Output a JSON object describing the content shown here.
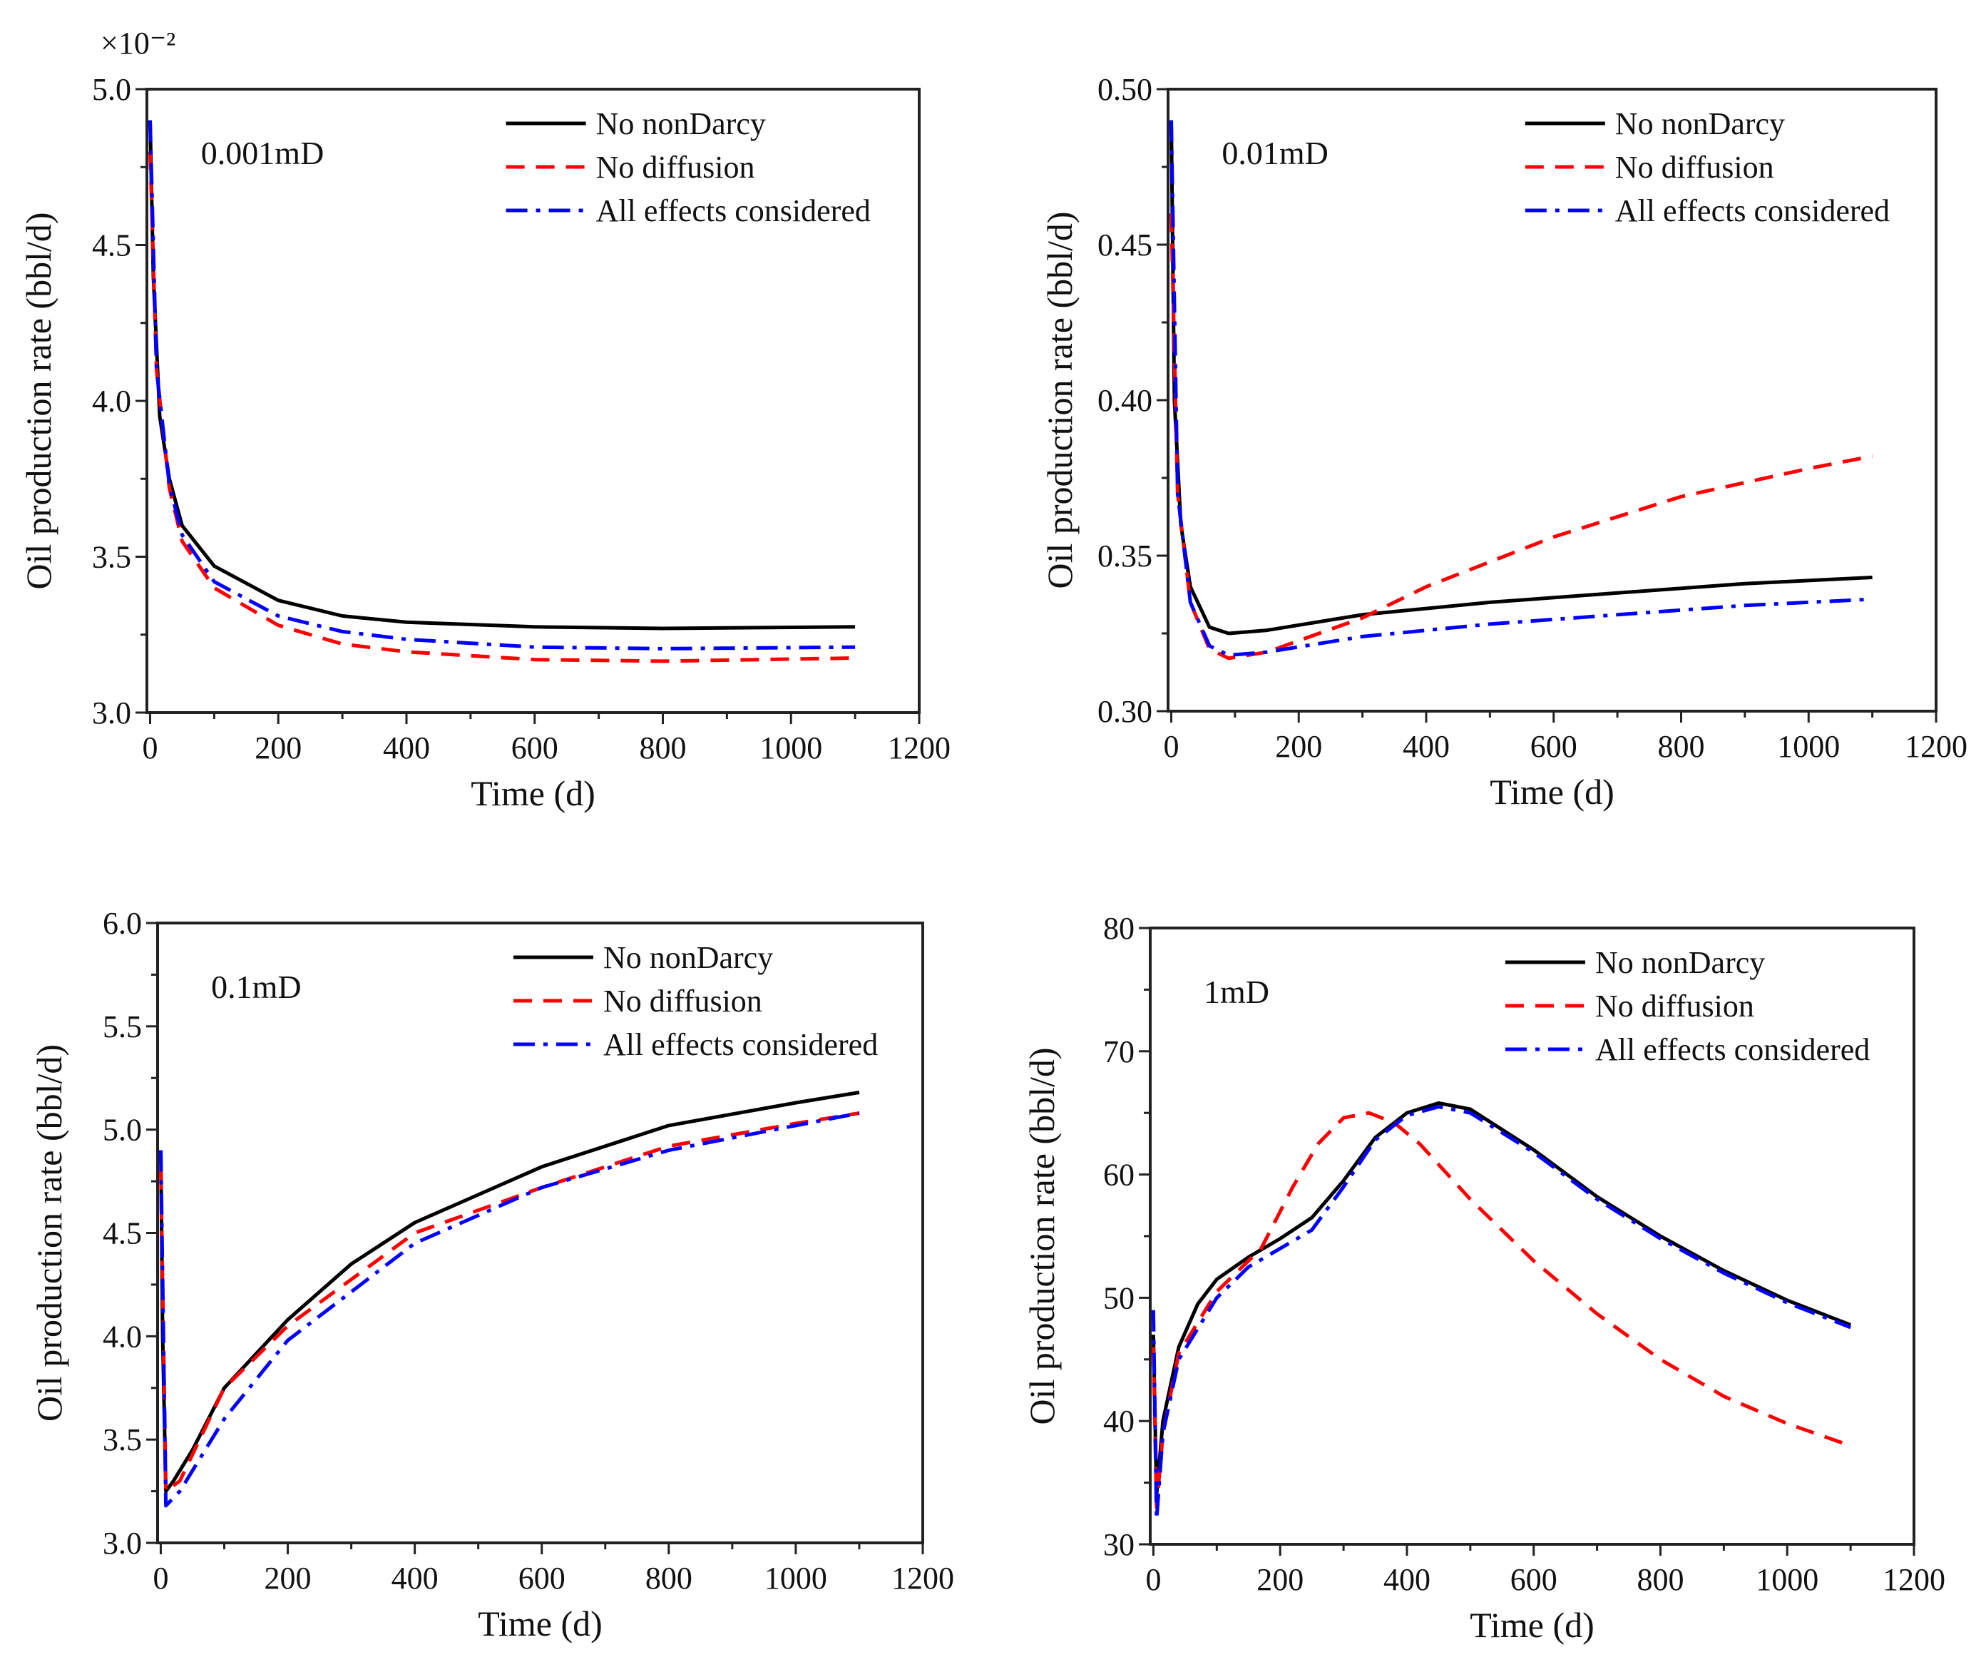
{
  "chart_data": [
    {
      "type": "line",
      "panel_label": "0.001mD",
      "xlabel": "Time (d)",
      "ylabel": "Oil production rate (bbl/d)",
      "y_multiplier": "×10⁻²",
      "xlim": [
        -5,
        1200
      ],
      "ylim": [
        3.0,
        5.0
      ],
      "xticks": [
        0,
        200,
        400,
        600,
        800,
        1000,
        1200
      ],
      "yticks": [
        "3.0",
        "3.5",
        "4.0",
        "4.5",
        "5.0"
      ],
      "legend_placement": "top-right",
      "series": [
        {
          "name": "No nonDarcy",
          "color": "#000000",
          "style": "solid",
          "x": [
            0,
            5,
            15,
            30,
            50,
            100,
            200,
            300,
            400,
            600,
            800,
            1100
          ],
          "y": [
            4.9,
            4.4,
            3.95,
            3.75,
            3.6,
            3.47,
            3.36,
            3.31,
            3.29,
            3.275,
            3.27,
            3.275
          ]
        },
        {
          "name": "No diffusion",
          "color": "#ff0000",
          "style": "dash",
          "x": [
            0,
            10,
            30,
            50,
            100,
            200,
            300,
            400,
            600,
            800,
            1100
          ],
          "y": [
            4.8,
            4.1,
            3.72,
            3.55,
            3.4,
            3.28,
            3.22,
            3.195,
            3.17,
            3.165,
            3.175
          ]
        },
        {
          "name": "All effects considered",
          "color": "#0000ff",
          "style": "dashdot",
          "x": [
            0,
            10,
            30,
            50,
            100,
            200,
            300,
            400,
            600,
            800,
            1100
          ],
          "y": [
            4.9,
            4.1,
            3.73,
            3.57,
            3.42,
            3.31,
            3.26,
            3.235,
            3.21,
            3.205,
            3.21
          ]
        }
      ]
    },
    {
      "type": "line",
      "panel_label": "0.01mD",
      "xlabel": "Time (d)",
      "ylabel": "Oil production rate (bbl/d)",
      "xlim": [
        -5,
        1200
      ],
      "ylim": [
        0.3,
        0.5
      ],
      "xticks": [
        0,
        200,
        400,
        600,
        800,
        1000,
        1200
      ],
      "yticks": [
        "0.30",
        "0.35",
        "0.40",
        "0.45",
        "0.50"
      ],
      "legend_placement": "top-right",
      "series": [
        {
          "name": "No nonDarcy",
          "color": "#000000",
          "style": "solid",
          "x": [
            0,
            5,
            15,
            30,
            60,
            90,
            150,
            300,
            500,
            700,
            900,
            1100
          ],
          "y": [
            0.49,
            0.4,
            0.36,
            0.34,
            0.327,
            0.325,
            0.326,
            0.331,
            0.335,
            0.338,
            0.341,
            0.343
          ]
        },
        {
          "name": "No diffusion",
          "color": "#ff0000",
          "style": "dash",
          "x": [
            0,
            10,
            30,
            60,
            90,
            150,
            300,
            400,
            600,
            800,
            1000,
            1100
          ],
          "y": [
            0.46,
            0.37,
            0.335,
            0.32,
            0.317,
            0.319,
            0.33,
            0.34,
            0.356,
            0.369,
            0.378,
            0.382
          ]
        },
        {
          "name": "All effects considered",
          "color": "#0000ff",
          "style": "dashdot",
          "x": [
            0,
            10,
            30,
            60,
            90,
            150,
            300,
            500,
            700,
            900,
            1100
          ],
          "y": [
            0.49,
            0.37,
            0.335,
            0.321,
            0.318,
            0.319,
            0.324,
            0.328,
            0.331,
            0.334,
            0.336
          ]
        }
      ]
    },
    {
      "type": "line",
      "panel_label": "0.1mD",
      "xlabel": "Time (d)",
      "ylabel": "Oil production rate (bbl/d)",
      "xlim": [
        -5,
        1200
      ],
      "ylim": [
        3.0,
        6.0
      ],
      "xticks": [
        0,
        200,
        400,
        600,
        800,
        1000,
        1200
      ],
      "yticks": [
        "3.0",
        "3.5",
        "4.0",
        "4.5",
        "5.0",
        "5.5",
        "6.0"
      ],
      "legend_placement": "top-right",
      "series": [
        {
          "name": "No nonDarcy",
          "color": "#000000",
          "style": "solid",
          "x": [
            0,
            3,
            8,
            20,
            50,
            100,
            200,
            300,
            400,
            600,
            800,
            1000,
            1100
          ],
          "y": [
            4.9,
            4.0,
            3.25,
            3.3,
            3.45,
            3.75,
            4.08,
            4.35,
            4.55,
            4.82,
            5.02,
            5.13,
            5.18
          ]
        },
        {
          "name": "No diffusion",
          "color": "#ff0000",
          "style": "dash",
          "x": [
            0,
            8,
            30,
            100,
            200,
            400,
            600,
            800,
            1000,
            1100
          ],
          "y": [
            4.8,
            3.25,
            3.3,
            3.75,
            4.05,
            4.5,
            4.72,
            4.92,
            5.03,
            5.08
          ]
        },
        {
          "name": "All effects considered",
          "color": "#0000ff",
          "style": "dashdot",
          "x": [
            0,
            8,
            30,
            100,
            200,
            400,
            600,
            800,
            1000,
            1100
          ],
          "y": [
            4.9,
            3.18,
            3.25,
            3.6,
            3.98,
            4.45,
            4.72,
            4.9,
            5.02,
            5.08
          ]
        }
      ]
    },
    {
      "type": "line",
      "panel_label": "1mD",
      "xlabel": "Time (d)",
      "ylabel": "Oil production rate (bbl/d)",
      "xlim": [
        -5,
        1200
      ],
      "ylim": [
        30,
        80
      ],
      "xticks": [
        0,
        200,
        400,
        600,
        800,
        1000,
        1200
      ],
      "yticks": [
        "30",
        "40",
        "50",
        "60",
        "70",
        "80"
      ],
      "legend_placement": "top-right",
      "series": [
        {
          "name": "No nonDarcy",
          "color": "#000000",
          "style": "solid",
          "x": [
            0,
            5,
            15,
            40,
            70,
            100,
            150,
            200,
            250,
            300,
            350,
            400,
            450,
            500,
            600,
            700,
            800,
            900,
            1000,
            1100
          ],
          "y": [
            47,
            34,
            40,
            46,
            49.5,
            51.5,
            53.3,
            54.8,
            56.5,
            59.5,
            63,
            65,
            65.8,
            65.3,
            62,
            58.2,
            55,
            52.2,
            49.8,
            47.8
          ]
        },
        {
          "name": "No diffusion",
          "color": "#ff0000",
          "style": "dash",
          "x": [
            0,
            5,
            15,
            40,
            100,
            170,
            220,
            260,
            300,
            340,
            380,
            420,
            500,
            600,
            700,
            800,
            900,
            1000,
            1100
          ],
          "y": [
            46,
            33,
            39,
            45.5,
            50.5,
            54,
            59,
            62.5,
            64.6,
            65,
            64.2,
            62.5,
            58,
            53,
            48.7,
            45,
            42,
            39.8,
            38
          ]
        },
        {
          "name": "All effects considered",
          "color": "#0000ff",
          "style": "dashdot",
          "x": [
            0,
            5,
            15,
            40,
            100,
            150,
            250,
            300,
            350,
            400,
            450,
            500,
            600,
            700,
            800,
            900,
            1000,
            1100
          ],
          "y": [
            49,
            32,
            39,
            45,
            50,
            52.5,
            55.5,
            59,
            62.8,
            64.8,
            65.5,
            65,
            61.8,
            58,
            54.8,
            52,
            49.6,
            47.6
          ]
        }
      ]
    }
  ]
}
